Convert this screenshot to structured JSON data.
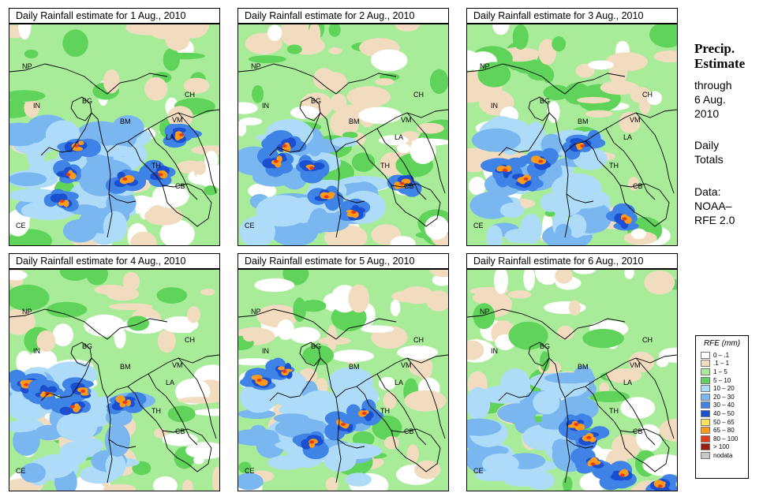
{
  "panels": [
    {
      "title": "Daily Rainfall estimate for  1 Aug., 2010",
      "seed": 11,
      "heavy": [
        [
          0.32,
          0.55
        ],
        [
          0.28,
          0.68
        ],
        [
          0.72,
          0.68
        ],
        [
          0.25,
          0.8
        ],
        [
          0.55,
          0.7
        ],
        [
          0.82,
          0.5
        ]
      ]
    },
    {
      "title": "Daily Rainfall estimate for  2 Aug., 2010",
      "seed": 23,
      "heavy": [
        [
          0.22,
          0.55
        ],
        [
          0.35,
          0.65
        ],
        [
          0.42,
          0.78
        ],
        [
          0.78,
          0.72
        ],
        [
          0.55,
          0.85
        ],
        [
          0.18,
          0.62
        ]
      ]
    },
    {
      "title": "Daily Rainfall estimate for  3 Aug., 2010",
      "seed": 37,
      "heavy": [
        [
          0.35,
          0.62
        ],
        [
          0.28,
          0.7
        ],
        [
          0.55,
          0.55
        ],
        [
          0.18,
          0.66
        ],
        [
          0.75,
          0.88
        ]
      ]
    },
    {
      "title": "Daily Rainfall estimate for  4 Aug., 2010",
      "seed": 41,
      "heavy": [
        [
          0.08,
          0.52
        ],
        [
          0.18,
          0.56
        ],
        [
          0.3,
          0.62
        ],
        [
          0.35,
          0.55
        ],
        [
          0.55,
          0.6
        ]
      ]
    },
    {
      "title": "Daily Rainfall estimate for  5 Aug., 2010",
      "seed": 53,
      "heavy": [
        [
          0.1,
          0.5
        ],
        [
          0.22,
          0.46
        ],
        [
          0.35,
          0.78
        ],
        [
          0.5,
          0.7
        ],
        [
          0.6,
          0.65
        ]
      ]
    },
    {
      "title": "Daily Rainfall estimate for  6 Aug., 2010",
      "seed": 67,
      "heavy": [
        [
          0.52,
          0.7
        ],
        [
          0.58,
          0.76
        ],
        [
          0.74,
          0.93
        ],
        [
          0.92,
          0.98
        ],
        [
          0.6,
          0.88
        ]
      ]
    }
  ],
  "map_labels": [
    "NP",
    "CH",
    "IN",
    "BG",
    "BM",
    "VM",
    "LA",
    "TH",
    "CB",
    "CE"
  ],
  "side": {
    "title_line1": "Precip.",
    "title_line2": "Estimate",
    "through": "through",
    "date_line1": "6 Aug.",
    "date_line2": "2010",
    "daily_line1": "Daily",
    "daily_line2": "Totals",
    "data_line1": "Data:",
    "data_line2": "NOAA–",
    "data_line3": "RFE 2.0"
  },
  "legend": {
    "title": "RFE (mm)",
    "items": [
      {
        "label": "0 – .1",
        "color": "#ffffff"
      },
      {
        "label": ".1 – 1",
        "color": "#f2dcc0"
      },
      {
        "label": "1 – 5",
        "color": "#a8ec9a"
      },
      {
        "label": "5 – 10",
        "color": "#5fd35a"
      },
      {
        "label": "10 – 20",
        "color": "#aedcf8"
      },
      {
        "label": "20 – 30",
        "color": "#7ab6ef"
      },
      {
        "label": "30 – 40",
        "color": "#3f83e6"
      },
      {
        "label": "40 – 50",
        "color": "#1a4fd0"
      },
      {
        "label": "50 – 65",
        "color": "#ffe15a"
      },
      {
        "label": "65 – 80",
        "color": "#ff9a1a"
      },
      {
        "label": "80 – 100",
        "color": "#e63b16"
      },
      {
        "label": "> 100",
        "color": "#9e1a10"
      },
      {
        "label": "nodata",
        "color": "#c8c8c8"
      }
    ]
  }
}
